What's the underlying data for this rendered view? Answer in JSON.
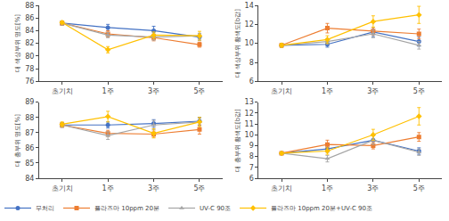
{
  "chart_data": [
    {
      "type": "line",
      "categories": [
        "초기치",
        "1주",
        "3주",
        "5주"
      ],
      "ylabel": "대 색상부위 명도[%]",
      "ylim": [
        76,
        88
      ],
      "yticks": [
        76,
        78,
        80,
        82,
        84,
        86,
        88
      ],
      "grid": false,
      "legend": "lower left",
      "series": [
        {
          "name": "무처리",
          "color": "#4472C4",
          "marker": "circle",
          "values": [
            85.2,
            84.5,
            84.0,
            83.0
          ],
          "errors": [
            0.3,
            0.5,
            0.7,
            0.5
          ]
        },
        {
          "name": "플라즈마 10ppm 20분",
          "color": "#ED7D31",
          "marker": "square",
          "values": [
            85.2,
            83.5,
            82.9,
            81.8
          ],
          "errors": [
            0.3,
            0.5,
            0.5,
            0.4
          ]
        },
        {
          "name": "UV-C 90조",
          "color": "#A5A5A5",
          "marker": "triangle-up",
          "values": [
            85.2,
            83.3,
            83.0,
            83.2
          ],
          "errors": [
            0.3,
            0.4,
            0.5,
            0.4
          ]
        },
        {
          "name": "플라즈마 10ppm 20분+UV-C 90조",
          "color": "#FFC000",
          "marker": "diamond",
          "values": [
            85.3,
            81.0,
            83.3,
            83.2
          ],
          "errors": [
            0.2,
            0.5,
            0.5,
            0.7
          ]
        }
      ]
    },
    {
      "type": "line",
      "categories": [
        "초기치",
        "1주",
        "3주",
        "5주"
      ],
      "ylabel": "대 색상부위 황색도[b값]",
      "ylim": [
        6,
        14
      ],
      "yticks": [
        6,
        8,
        10,
        12,
        14
      ],
      "grid": false,
      "legend": "lower left",
      "series": [
        {
          "name": "무처리",
          "color": "#4472C4",
          "marker": "circle",
          "values": [
            9.8,
            9.9,
            11.2,
            10.2
          ],
          "errors": [
            0.2,
            0.3,
            0.5,
            0.5
          ]
        },
        {
          "name": "플라즈마 10ppm 20분",
          "color": "#ED7D31",
          "marker": "square",
          "values": [
            9.8,
            11.6,
            11.3,
            11.0
          ],
          "errors": [
            0.2,
            0.5,
            0.4,
            0.5
          ]
        },
        {
          "name": "UV-C 90조",
          "color": "#A5A5A5",
          "marker": "triangle-up",
          "values": [
            9.8,
            10.2,
            11.0,
            9.8
          ],
          "errors": [
            0.2,
            0.3,
            0.4,
            0.4
          ]
        },
        {
          "name": "플라즈마 10ppm 20분+UV-C 90조",
          "color": "#FFC000",
          "marker": "diamond",
          "values": [
            9.8,
            10.4,
            12.3,
            13.0
          ],
          "errors": [
            0.2,
            0.4,
            0.6,
            0.9
          ]
        }
      ]
    },
    {
      "type": "line",
      "categories": [
        "초기치",
        "1주",
        "3주",
        "5주"
      ],
      "ylabel": "대 총부위 명도[%]",
      "ylim": [
        84,
        89
      ],
      "yticks": [
        84,
        85,
        86,
        87,
        88,
        89
      ],
      "grid": false,
      "legend": "lower left",
      "series": [
        {
          "name": "무처리",
          "color": "#4472C4",
          "marker": "circle",
          "values": [
            87.5,
            87.5,
            87.6,
            87.75
          ],
          "errors": [
            0.15,
            0.2,
            0.25,
            0.25
          ]
        },
        {
          "name": "플라즈마 10ppm 20분",
          "color": "#ED7D31",
          "marker": "square",
          "values": [
            87.5,
            86.95,
            86.9,
            87.2
          ],
          "errors": [
            0.15,
            0.2,
            0.2,
            0.3
          ]
        },
        {
          "name": "UV-C 90조",
          "color": "#A5A5A5",
          "marker": "triangle-up",
          "values": [
            87.5,
            86.8,
            87.5,
            87.7
          ],
          "errors": [
            0.15,
            0.25,
            0.3,
            0.25
          ]
        },
        {
          "name": "플라즈마 10ppm 20분+UV-C 90조",
          "color": "#FFC000",
          "marker": "diamond",
          "values": [
            87.55,
            88.05,
            86.95,
            87.7
          ],
          "errors": [
            0.15,
            0.35,
            0.3,
            0.3
          ]
        }
      ]
    },
    {
      "type": "line",
      "categories": [
        "초기치",
        "1주",
        "3주",
        "5주"
      ],
      "ylabel": "대 총부위 황색도[b값]",
      "ylim": [
        6,
        13
      ],
      "yticks": [
        6,
        7,
        8,
        9,
        10,
        11,
        12,
        13
      ],
      "grid": false,
      "legend": "lower left",
      "series": [
        {
          "name": "무처리",
          "color": "#4472C4",
          "marker": "circle",
          "values": [
            8.3,
            8.7,
            9.5,
            8.5
          ],
          "errors": [
            0.1,
            0.3,
            0.4,
            0.3
          ]
        },
        {
          "name": "플라즈마 10ppm 20분",
          "color": "#ED7D31",
          "marker": "square",
          "values": [
            8.3,
            9.1,
            9.0,
            9.8
          ],
          "errors": [
            0.1,
            0.4,
            0.3,
            0.4
          ]
        },
        {
          "name": "UV-C 90조",
          "color": "#A5A5A5",
          "marker": "triangle-up",
          "values": [
            8.3,
            7.8,
            9.5,
            8.4
          ],
          "errors": [
            0.1,
            0.3,
            0.4,
            0.3
          ]
        },
        {
          "name": "플라즈마 10ppm 20분+UV-C 90조",
          "color": "#FFC000",
          "marker": "diamond",
          "values": [
            8.3,
            8.5,
            10.0,
            11.7
          ],
          "errors": [
            0.1,
            0.3,
            0.5,
            0.8
          ]
        }
      ]
    }
  ]
}
